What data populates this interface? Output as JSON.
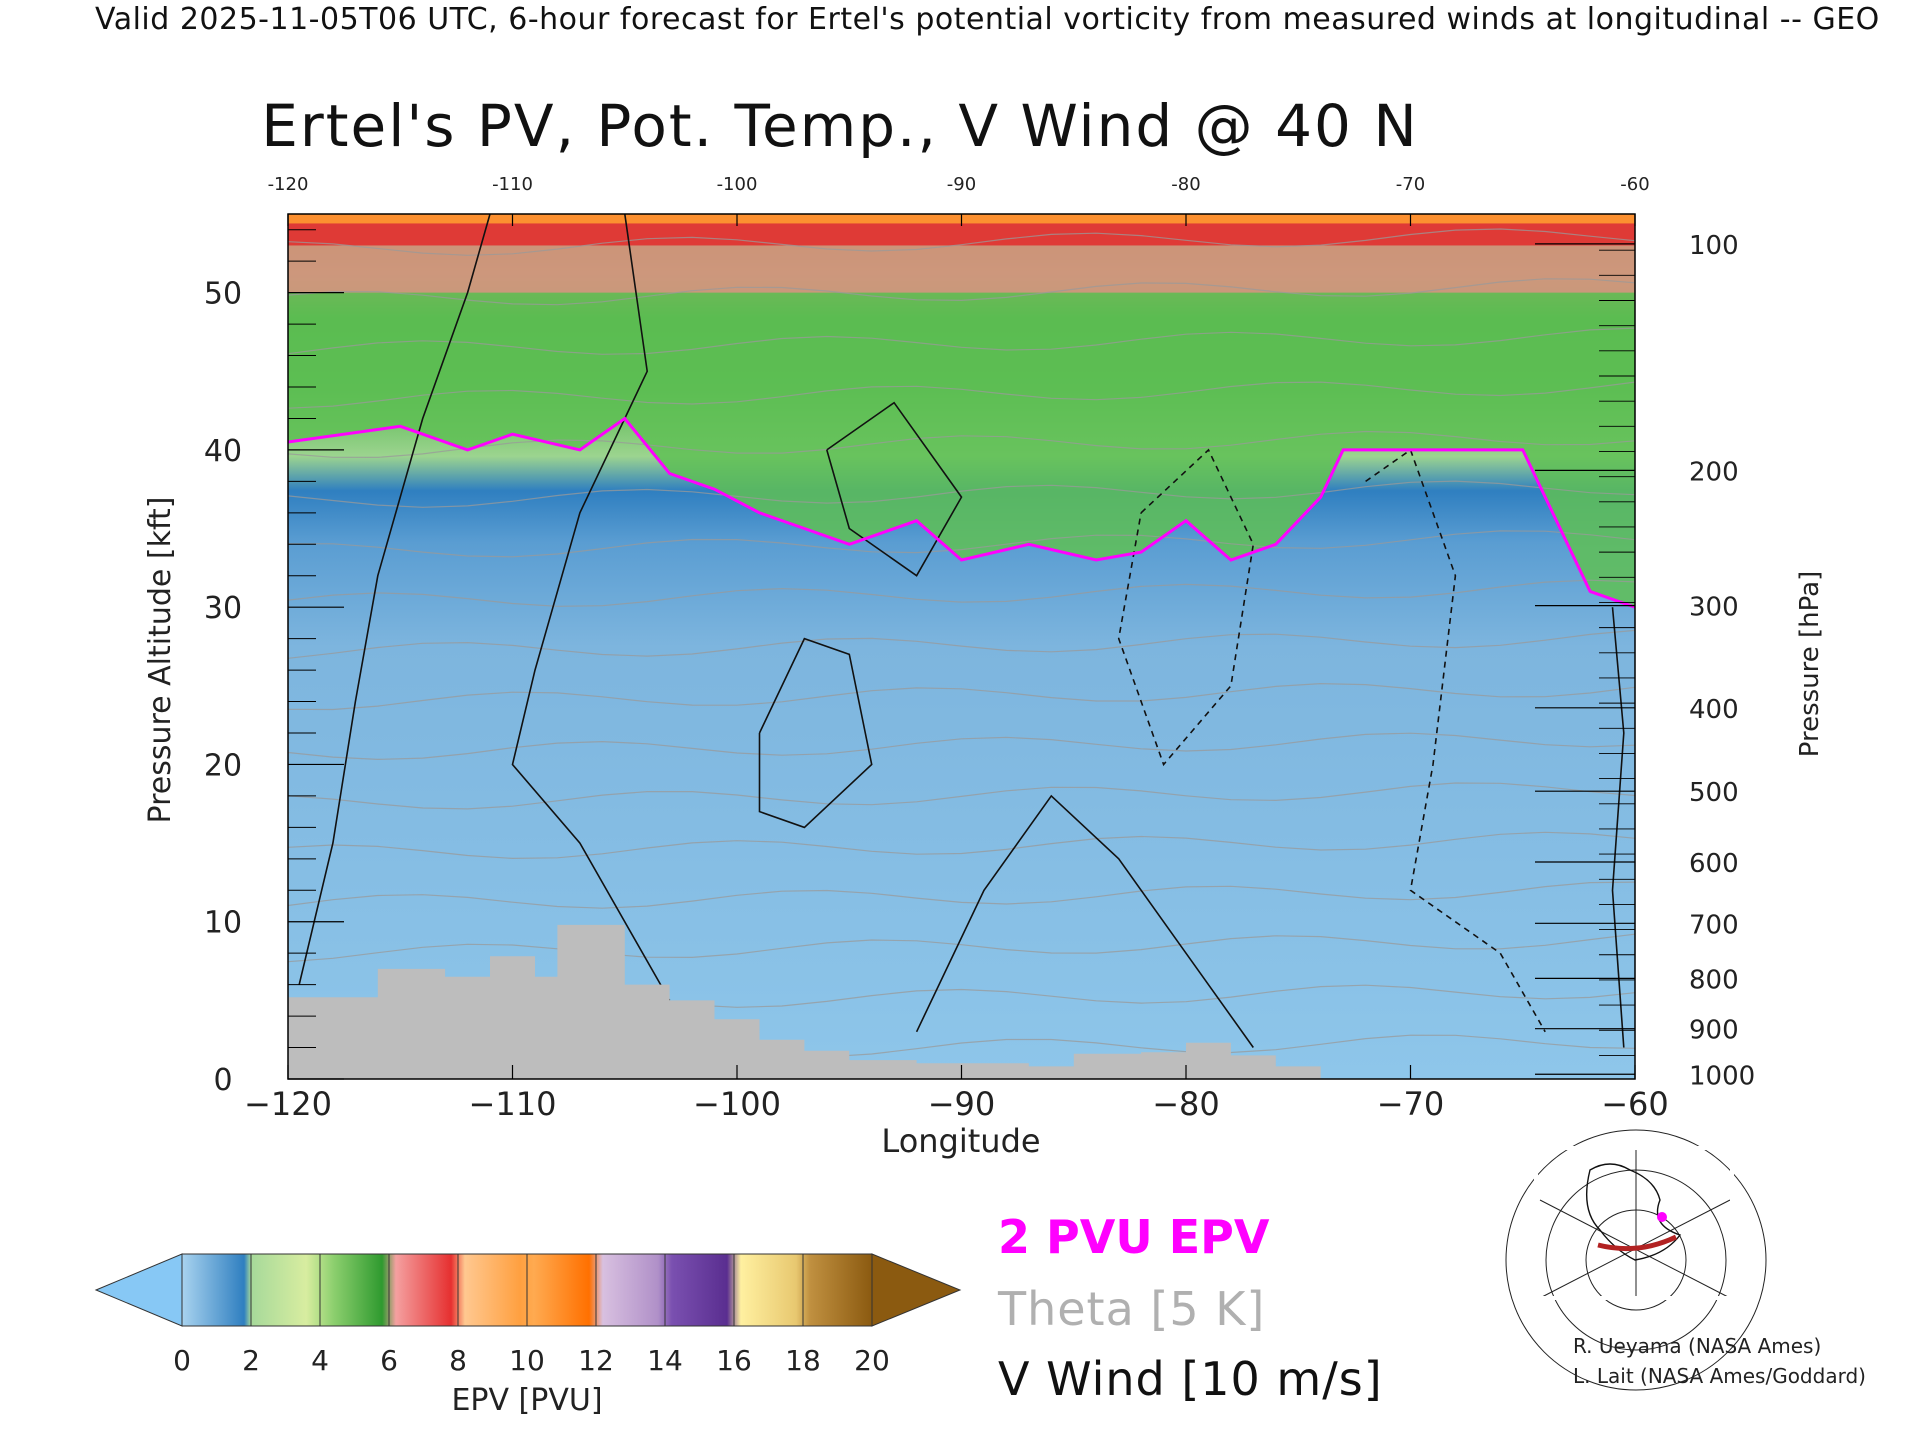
{
  "header": "Valid 2025-11-05T06 UTC, 6-hour forecast for Ertel's potential vorticity from measured winds at longitudinal -- GEO",
  "chart_data": {
    "type": "heatmap",
    "title": "Ertel's PV, Pot. Temp., V Wind @ 40 N",
    "xlabel": "Longitude",
    "ylabel": "Pressure Altitude [kft]",
    "y2label": "Pressure [hPa]",
    "xlim": [
      -120,
      -60
    ],
    "ylim": [
      0,
      55
    ],
    "x_ticks": [
      "−120",
      "−110",
      "−100",
      "−90",
      "−80",
      "−70",
      "−60"
    ],
    "x_top_ticks": [
      "-120",
      "-110",
      "-100",
      "-90",
      "-80",
      "-70",
      "-60"
    ],
    "y_ticks": [
      "0",
      "10",
      "20",
      "30",
      "40",
      "50"
    ],
    "pressure_ticks": [
      {
        "label": "100",
        "alt_kft": 53.1
      },
      {
        "label": "200",
        "alt_kft": 38.7
      },
      {
        "label": "300",
        "alt_kft": 30.1
      },
      {
        "label": "400",
        "alt_kft": 23.6
      },
      {
        "label": "500",
        "alt_kft": 18.3
      },
      {
        "label": "600",
        "alt_kft": 13.8
      },
      {
        "label": "700",
        "alt_kft": 9.9
      },
      {
        "label": "800",
        "alt_kft": 6.4
      },
      {
        "label": "900",
        "alt_kft": 3.2
      },
      {
        "label": "1000",
        "alt_kft": 0.3
      }
    ],
    "epv_surface_profile": {
      "longitudes": [
        -120,
        -115,
        -112,
        -110,
        -107,
        -105,
        -103,
        -101,
        -99,
        -97,
        -95,
        -92,
        -90,
        -87,
        -84,
        -82,
        -80,
        -78,
        -76,
        -74
      ],
      "alt_2pvu_kft": [
        40.5,
        41.5,
        40,
        41,
        40,
        42,
        38.5,
        37.5,
        36,
        35,
        34,
        35.5,
        33,
        34,
        33,
        33.5,
        35.5,
        33,
        34,
        37
      ]
    },
    "terrain": {
      "longitudes": [
        -120,
        -118,
        -116,
        -113,
        -111,
        -109,
        -108,
        -105,
        -103,
        -101,
        -99,
        -97,
        -95,
        -92,
        -90,
        -87,
        -85,
        -82,
        -80,
        -78,
        -76,
        -74
      ],
      "alt_kft": [
        5.2,
        5.2,
        7.0,
        6.5,
        7.8,
        6.5,
        9.8,
        6.0,
        5.0,
        3.8,
        2.5,
        1.8,
        1.2,
        1.0,
        1.0,
        0.8,
        1.6,
        1.7,
        2.3,
        1.5,
        0.8,
        0.2
      ]
    },
    "colorbar": {
      "label": "EPV [PVU]",
      "ticks": [
        "0",
        "2",
        "4",
        "6",
        "8",
        "10",
        "12",
        "14",
        "16",
        "18",
        "20"
      ],
      "colors": [
        "#7fc3f0",
        "#3a8ccb",
        "#9fd58f",
        "#3da33a",
        "#f08a8a",
        "#e02828",
        "#ffb060",
        "#ff7f10",
        "#c8a8d8",
        "#6a3fa0",
        "#f5e890",
        "#8b5a10"
      ],
      "under_color": "#87c8f5",
      "over_color": "#8b5a10"
    },
    "legend": [
      "2 PVU EPV",
      "Theta [5 K]",
      "V Wind [10 m/s]"
    ]
  },
  "credits": [
    "R. Ueyama (NASA Ames)",
    "L. Lait (NASA Ames/Goddard)"
  ],
  "colors": {
    "pvu_contour": "#ff00ff",
    "theta": "#aaaaaa",
    "terrain": "#bdbdbd"
  }
}
